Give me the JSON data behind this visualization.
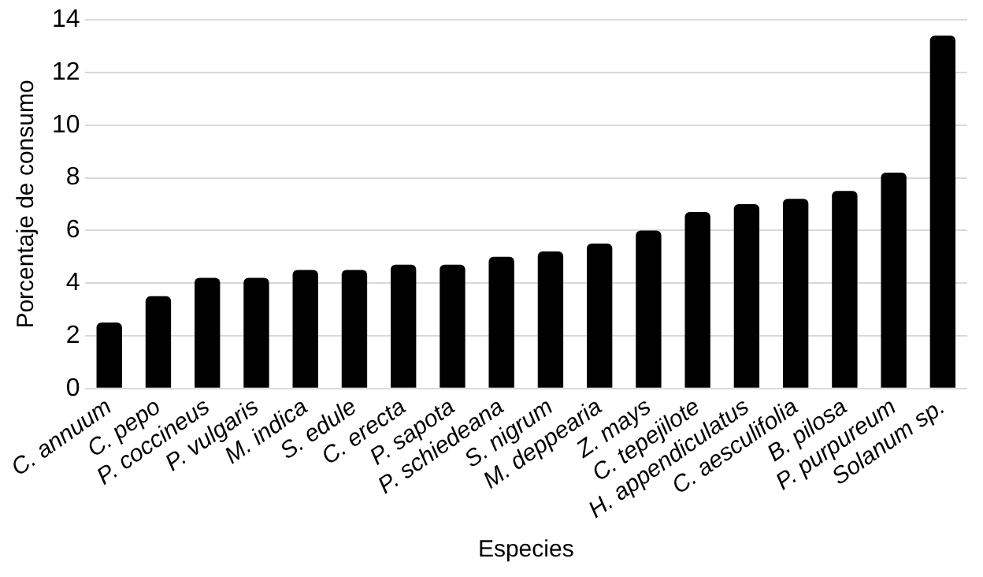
{
  "chart_data": {
    "type": "bar",
    "xlabel": "Especies",
    "ylabel": "Porcentaje de consumo",
    "categories": [
      "C. annuum",
      "C. pepo",
      "P. coccineus",
      "P. vulgaris",
      "M. indica",
      "S. edule",
      "C. erecta",
      "P. sapota",
      "P. schiedeana",
      "S. nigrum",
      "M. deppearia",
      "Z. mays",
      "C. tepejilote",
      "H. appendiculatus",
      "C. aesculifolia",
      "B. pilosa",
      "P. purpureum",
      "Solanum sp."
    ],
    "values": [
      2.5,
      3.5,
      4.2,
      4.2,
      4.5,
      4.5,
      4.7,
      4.7,
      5.0,
      5.2,
      5.5,
      6.0,
      6.7,
      7.0,
      7.2,
      7.5,
      8.2,
      13.4
    ],
    "color": "#000000",
    "ylim": [
      0,
      14
    ],
    "yticks": [
      0,
      2,
      4,
      6,
      8,
      10,
      12,
      14
    ],
    "grid": "y"
  }
}
